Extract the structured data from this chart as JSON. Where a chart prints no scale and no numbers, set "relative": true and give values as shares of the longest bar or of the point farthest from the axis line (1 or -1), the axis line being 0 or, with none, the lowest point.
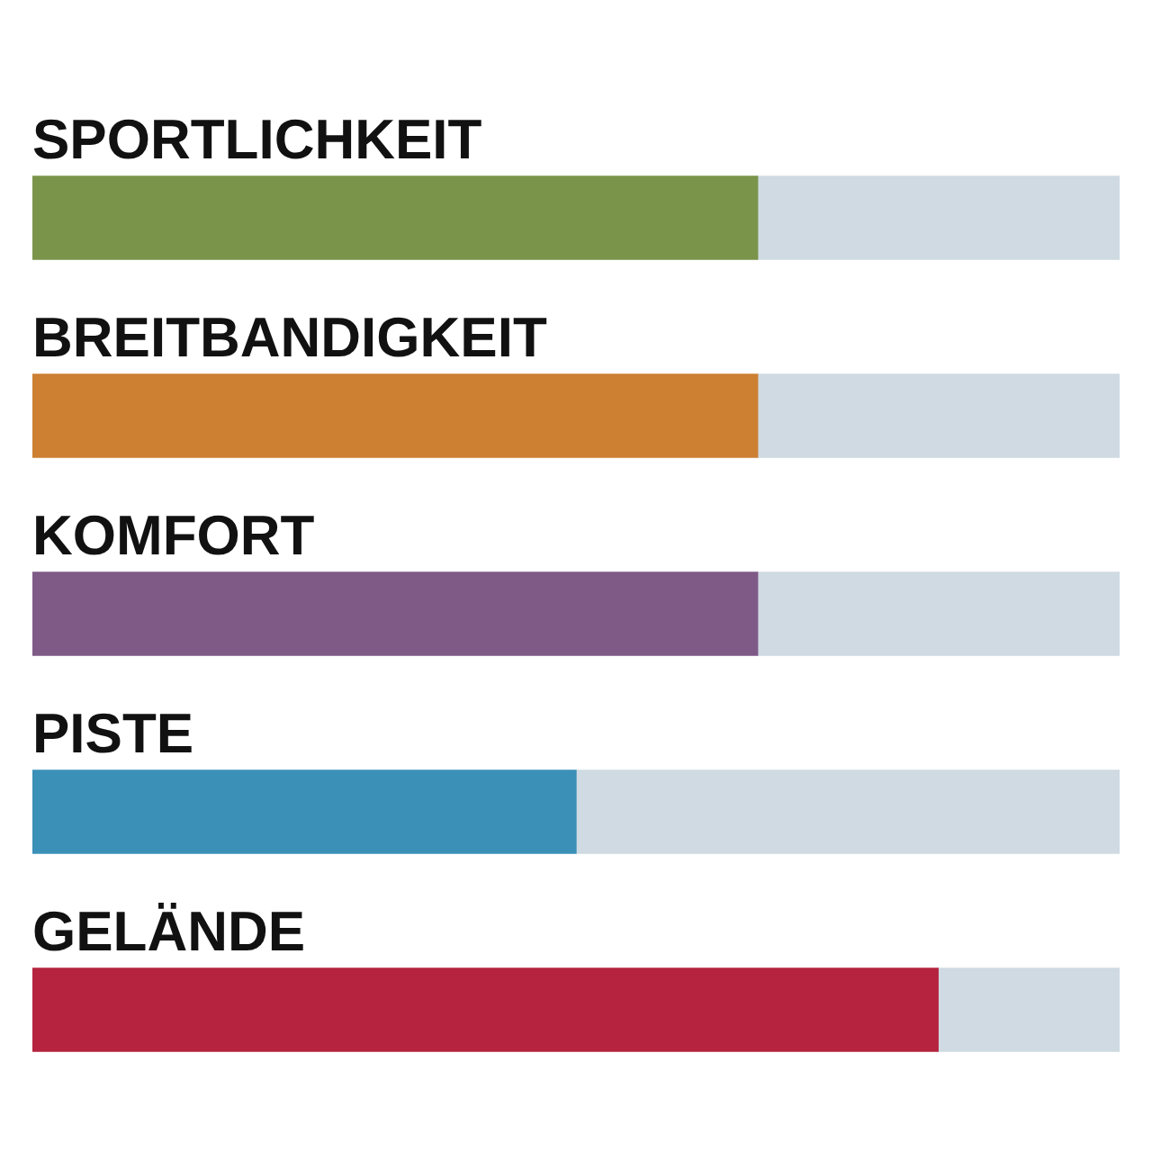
{
  "chart_data": {
    "type": "bar",
    "orientation": "horizontal",
    "stacked": true,
    "relative": true,
    "legend": false,
    "categories": [
      "SPORTLICHKEIT",
      "BREITBANDIGKEIT",
      "KOMFORT",
      "PISTE",
      "GELÄNDE"
    ],
    "series": [
      {
        "colors": [
          "#7a944a",
          "#cd7f32",
          "#7f5a87",
          "#3b90b8",
          "#b5233e"
        ],
        "values": [
          0.667,
          0.667,
          0.667,
          0.5,
          0.833
        ]
      },
      {
        "color": "#cfdae2",
        "values": [
          0.333,
          0.333,
          0.333,
          0.5,
          0.167
        ]
      }
    ]
  }
}
